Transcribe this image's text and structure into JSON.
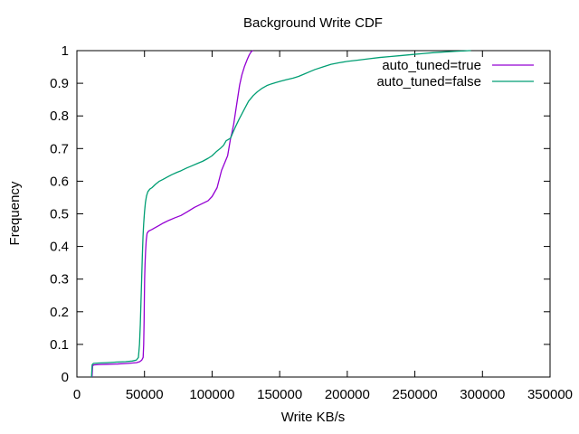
{
  "chart_data": {
    "type": "line",
    "title": "Background Write CDF",
    "xlabel": "Write KB/s",
    "ylabel": "Frequency",
    "xlim": [
      0,
      350000
    ],
    "ylim": [
      0,
      1
    ],
    "xticks": [
      0,
      50000,
      100000,
      150000,
      200000,
      250000,
      300000,
      350000
    ],
    "yticks": [
      0,
      0.1,
      0.2,
      0.3,
      0.4,
      0.5,
      0.6,
      0.7,
      0.8,
      0.9,
      1
    ],
    "grid": false,
    "legend_position": "top-right-inside",
    "background_color": "#ffffff",
    "axis_color": "#000000",
    "series": [
      {
        "name": "auto_tuned=true",
        "color": "#9400D3",
        "points": [
          [
            11200,
            0
          ],
          [
            11600,
            0.034
          ],
          [
            12400,
            0.037
          ],
          [
            16000,
            0.038
          ],
          [
            22000,
            0.039
          ],
          [
            30000,
            0.04
          ],
          [
            38000,
            0.042
          ],
          [
            44000,
            0.044
          ],
          [
            46500,
            0.047
          ],
          [
            48000,
            0.052
          ],
          [
            49000,
            0.06
          ],
          [
            49400,
            0.1
          ],
          [
            49700,
            0.17
          ],
          [
            49900,
            0.24
          ],
          [
            50100,
            0.3
          ],
          [
            50400,
            0.345
          ],
          [
            50800,
            0.385
          ],
          [
            51300,
            0.42
          ],
          [
            51900,
            0.44
          ],
          [
            53000,
            0.447
          ],
          [
            55500,
            0.452
          ],
          [
            58000,
            0.458
          ],
          [
            61000,
            0.465
          ],
          [
            64000,
            0.472
          ],
          [
            68000,
            0.48
          ],
          [
            72000,
            0.487
          ],
          [
            77000,
            0.495
          ],
          [
            82000,
            0.507
          ],
          [
            87000,
            0.52
          ],
          [
            92000,
            0.53
          ],
          [
            97000,
            0.54
          ],
          [
            100000,
            0.553
          ],
          [
            103700,
            0.58
          ],
          [
            107000,
            0.633
          ],
          [
            109500,
            0.658
          ],
          [
            111500,
            0.678
          ],
          [
            113700,
            0.732
          ],
          [
            114500,
            0.745
          ],
          [
            116000,
            0.775
          ],
          [
            118000,
            0.83
          ],
          [
            120400,
            0.895
          ],
          [
            122000,
            0.925
          ],
          [
            124000,
            0.952
          ],
          [
            126000,
            0.973
          ],
          [
            127500,
            0.987
          ],
          [
            129000,
            0.997
          ],
          [
            130200,
            1.0
          ]
        ]
      },
      {
        "name": "auto_tuned=false",
        "color": "#009E73",
        "points": [
          [
            10800,
            0
          ],
          [
            11300,
            0.038
          ],
          [
            12300,
            0.042
          ],
          [
            16000,
            0.043
          ],
          [
            22000,
            0.044
          ],
          [
            30000,
            0.046
          ],
          [
            36000,
            0.047
          ],
          [
            41000,
            0.049
          ],
          [
            44000,
            0.052
          ],
          [
            45500,
            0.06
          ],
          [
            46300,
            0.1
          ],
          [
            46900,
            0.16
          ],
          [
            47400,
            0.23
          ],
          [
            47900,
            0.3
          ],
          [
            48400,
            0.37
          ],
          [
            48900,
            0.43
          ],
          [
            49400,
            0.47
          ],
          [
            50000,
            0.505
          ],
          [
            50700,
            0.535
          ],
          [
            51500,
            0.555
          ],
          [
            52500,
            0.568
          ],
          [
            54000,
            0.576
          ],
          [
            55500,
            0.58
          ],
          [
            58000,
            0.59
          ],
          [
            61000,
            0.6
          ],
          [
            63500,
            0.605
          ],
          [
            67000,
            0.613
          ],
          [
            70200,
            0.62
          ],
          [
            74000,
            0.627
          ],
          [
            77000,
            0.632
          ],
          [
            81000,
            0.64
          ],
          [
            85000,
            0.647
          ],
          [
            89000,
            0.654
          ],
          [
            93000,
            0.661
          ],
          [
            97000,
            0.67
          ],
          [
            100000,
            0.678
          ],
          [
            103000,
            0.69
          ],
          [
            106000,
            0.7
          ],
          [
            108500,
            0.71
          ],
          [
            110400,
            0.724
          ],
          [
            113700,
            0.732
          ],
          [
            115000,
            0.745
          ],
          [
            117100,
            0.765
          ],
          [
            120000,
            0.79
          ],
          [
            123800,
            0.82
          ],
          [
            127000,
            0.845
          ],
          [
            130400,
            0.862
          ],
          [
            133500,
            0.874
          ],
          [
            137100,
            0.885
          ],
          [
            140500,
            0.893
          ],
          [
            143800,
            0.898
          ],
          [
            147000,
            0.902
          ],
          [
            150500,
            0.906
          ],
          [
            155000,
            0.911
          ],
          [
            160000,
            0.916
          ],
          [
            164000,
            0.921
          ],
          [
            168000,
            0.928
          ],
          [
            172000,
            0.935
          ],
          [
            176000,
            0.942
          ],
          [
            182000,
            0.95
          ],
          [
            188000,
            0.958
          ],
          [
            194000,
            0.963
          ],
          [
            200000,
            0.967
          ],
          [
            208000,
            0.971
          ],
          [
            216000,
            0.975
          ],
          [
            224000,
            0.979
          ],
          [
            232000,
            0.982
          ],
          [
            240000,
            0.985
          ],
          [
            248000,
            0.988
          ],
          [
            256000,
            0.991
          ],
          [
            264000,
            0.994
          ],
          [
            272000,
            0.996
          ],
          [
            280000,
            0.998
          ],
          [
            286000,
            0.999
          ],
          [
            290000,
            1.0
          ],
          [
            291500,
            1.0
          ]
        ]
      }
    ]
  }
}
